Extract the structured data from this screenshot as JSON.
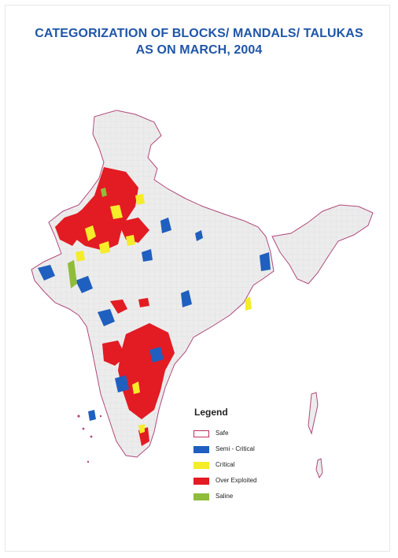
{
  "title_line1": "CATEGORIZATION OF BLOCKS/ MANDALS/ TALUKAS",
  "title_line2": "AS ON MARCH, 2004",
  "legend": {
    "title": "Legend",
    "items": [
      {
        "label": "Safe",
        "color": "#ffffff",
        "border": "#c03060"
      },
      {
        "label": "Semi - Critical",
        "color": "#1f5fbf"
      },
      {
        "label": "Critical",
        "color": "#f5ec2a"
      },
      {
        "label": "Over Exploited",
        "color": "#e31b23"
      },
      {
        "label": "Saline",
        "color": "#8fbd3a"
      }
    ]
  },
  "colors": {
    "land": "#ececec",
    "boundary": "#b0477a",
    "semi_critical": "#1f5fbf",
    "critical": "#f5ec2a",
    "over_exploited": "#e31b23",
    "saline": "#8fbd3a"
  }
}
